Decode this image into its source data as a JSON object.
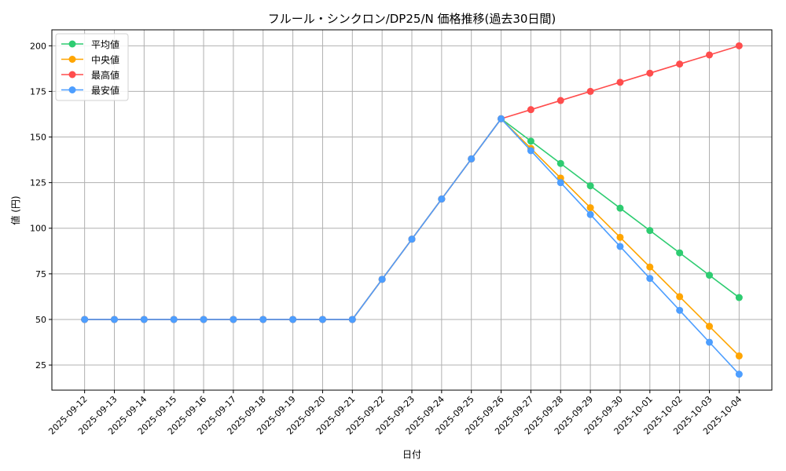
{
  "chart_data": {
    "type": "line",
    "title": "フルール・シンクロン/DP25/N 価格推移(過去30日間)",
    "xlabel": "日付",
    "ylabel": "値 (円)",
    "ylim": [
      11.25,
      208.75
    ],
    "yticks": [
      25,
      50,
      75,
      100,
      125,
      150,
      175,
      200
    ],
    "grid": true,
    "legend_position": "top-left",
    "categories": [
      "2025-09-12",
      "2025-09-13",
      "2025-09-14",
      "2025-09-15",
      "2025-09-16",
      "2025-09-17",
      "2025-09-18",
      "2025-09-19",
      "2025-09-20",
      "2025-09-21",
      "2025-09-22",
      "2025-09-23",
      "2025-09-24",
      "2025-09-25",
      "2025-09-26",
      "2025-09-27",
      "2025-09-28",
      "2025-09-29",
      "2025-09-30",
      "2025-10-01",
      "2025-10-02",
      "2025-10-03",
      "2025-10-04"
    ],
    "series": [
      {
        "name": "平均値",
        "color": "#2ecc71",
        "values": [
          50,
          50,
          50,
          50,
          50,
          50,
          50,
          50,
          50,
          50,
          72,
          94,
          116,
          138,
          160,
          147.75,
          135.5,
          123.25,
          111,
          98.75,
          86.5,
          74.25,
          62
        ]
      },
      {
        "name": "中央値",
        "color": "#ffa500",
        "values": [
          50,
          50,
          50,
          50,
          50,
          50,
          50,
          50,
          50,
          50,
          72,
          94,
          116,
          138,
          160,
          143.75,
          127.5,
          111.25,
          95,
          78.75,
          62.5,
          46.25,
          30
        ]
      },
      {
        "name": "最高値",
        "color": "#ff4d4d",
        "values": [
          50,
          50,
          50,
          50,
          50,
          50,
          50,
          50,
          50,
          50,
          72,
          94,
          116,
          138,
          160,
          165,
          170,
          175,
          180,
          185,
          190,
          195,
          200
        ]
      },
      {
        "name": "最安値",
        "color": "#4d9eff",
        "values": [
          50,
          50,
          50,
          50,
          50,
          50,
          50,
          50,
          50,
          50,
          72,
          94,
          116,
          138,
          160,
          142.5,
          125,
          107.5,
          90,
          72.5,
          55,
          37.5,
          20
        ]
      }
    ]
  }
}
